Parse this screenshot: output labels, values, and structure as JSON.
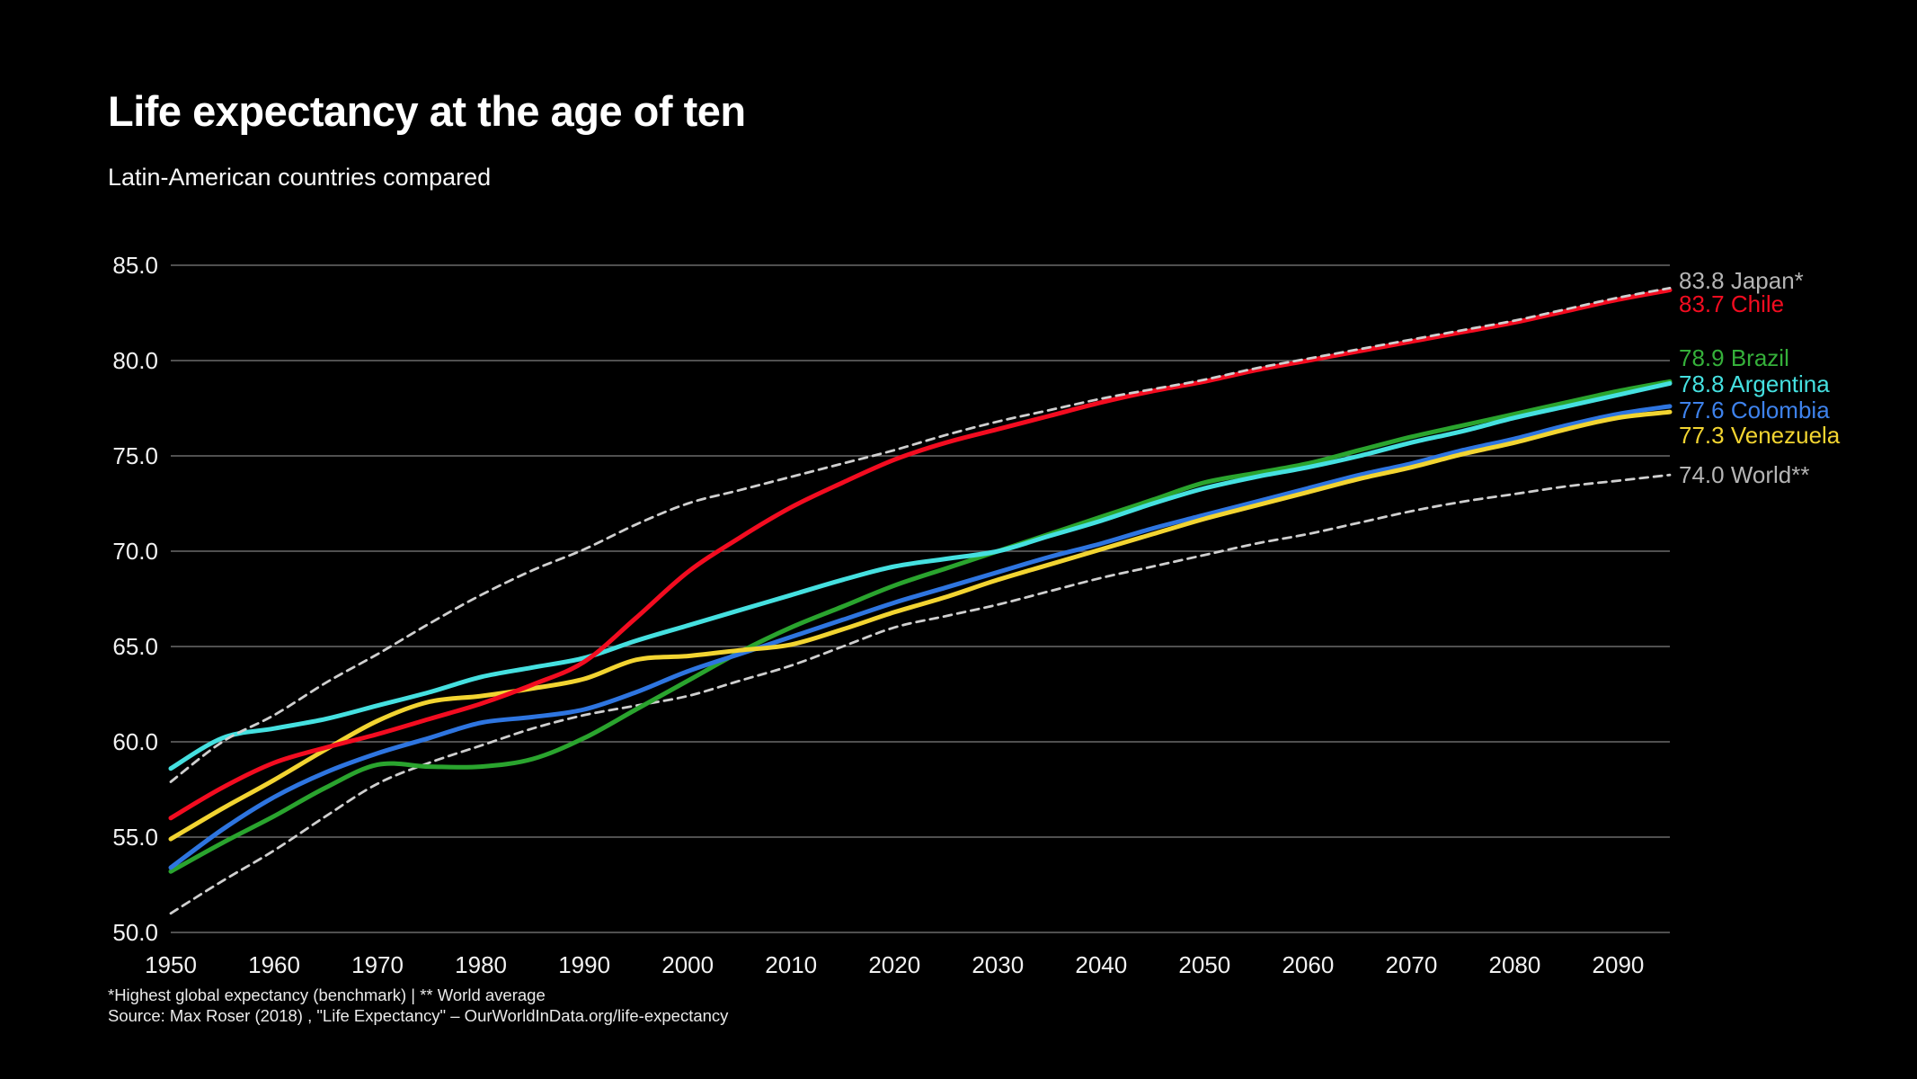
{
  "header": {
    "title": "Life expectancy at the age of ten",
    "subtitle": "Latin-American countries compared"
  },
  "footer": {
    "note": "*Highest global expectancy (benchmark) | ** World average",
    "source": "Source: Max Roser (2018) , \"Life Expectancy\" – OurWorldInData.org/life-expectancy"
  },
  "chart_data": {
    "type": "line",
    "title": "Life expectancy at the age of ten",
    "subtitle": "Latin-American countries compared",
    "xlabel": "",
    "ylabel": "",
    "xlim": [
      1950,
      2095
    ],
    "ylim": [
      50,
      85
    ],
    "grid": "horizontal-only",
    "legend": "right-edge-value-labels",
    "x_ticks": [
      1950,
      1960,
      1970,
      1980,
      1990,
      2000,
      2010,
      2020,
      2030,
      2040,
      2050,
      2060,
      2070,
      2080,
      2090
    ],
    "y_ticks": [
      {
        "value": 50,
        "label": "50.0"
      },
      {
        "value": 55,
        "label": "55.0"
      },
      {
        "value": 60,
        "label": "60.0"
      },
      {
        "value": 65,
        "label": "65.0"
      },
      {
        "value": 70,
        "label": "70.0"
      },
      {
        "value": 75,
        "label": "75.0"
      },
      {
        "value": 80,
        "label": "80.0"
      },
      {
        "value": 85,
        "label": "85.0"
      }
    ],
    "colors": {
      "grid": "#6b6b6b",
      "dashed_line": "#cfcfcf",
      "gray_label": "#b5b5b5",
      "chile": "#f30c20",
      "brazil": "#2aa42e",
      "argentina": "#45e0e0",
      "colombia": "#2e75e0",
      "venezuela": "#f2d431"
    },
    "x": [
      1950,
      1955,
      1960,
      1965,
      1970,
      1975,
      1980,
      1985,
      1990,
      1995,
      2000,
      2005,
      2010,
      2015,
      2020,
      2025,
      2030,
      2035,
      2040,
      2045,
      2050,
      2055,
      2060,
      2065,
      2070,
      2075,
      2080,
      2085,
      2090,
      2095
    ],
    "series": [
      {
        "name": "Japan",
        "end_label": "83.8 Japan*",
        "end_value": 83.8,
        "color": "#cfcfcf",
        "label_color": "#b5b5b5",
        "dashed": true,
        "values": [
          57.9,
          60.0,
          61.4,
          63.1,
          64.6,
          66.2,
          67.7,
          69.0,
          70.1,
          71.4,
          72.5,
          73.2,
          73.9,
          74.6,
          75.3,
          76.1,
          76.8,
          77.4,
          78.0,
          78.5,
          79.0,
          79.6,
          80.1,
          80.6,
          81.1,
          81.6,
          82.1,
          82.7,
          83.3,
          83.8
        ]
      },
      {
        "name": "Chile",
        "end_label": "83.7 Chile",
        "end_value": 83.7,
        "color": "#f30c20",
        "label_color": "#f30c20",
        "dashed": false,
        "values": [
          56.0,
          57.6,
          58.9,
          59.7,
          60.4,
          61.2,
          62.0,
          63.0,
          64.2,
          66.5,
          68.9,
          70.7,
          72.3,
          73.6,
          74.8,
          75.7,
          76.4,
          77.1,
          77.8,
          78.4,
          78.9,
          79.5,
          80.0,
          80.5,
          81.0,
          81.5,
          82.0,
          82.6,
          83.2,
          83.7
        ]
      },
      {
        "name": "Brazil",
        "end_label": "78.9 Brazil",
        "end_value": 78.9,
        "color": "#2aa42e",
        "label_color": "#35b03a",
        "dashed": false,
        "values": [
          53.2,
          54.7,
          56.1,
          57.6,
          58.8,
          58.7,
          58.7,
          59.1,
          60.2,
          61.7,
          63.2,
          64.7,
          66.0,
          67.1,
          68.2,
          69.1,
          70.0,
          70.9,
          71.8,
          72.7,
          73.6,
          74.1,
          74.6,
          75.3,
          76.0,
          76.6,
          77.2,
          77.8,
          78.4,
          78.9
        ]
      },
      {
        "name": "Argentina",
        "end_label": "78.8 Argentina",
        "end_value": 78.8,
        "color": "#45e0e0",
        "label_color": "#45e0e0",
        "dashed": false,
        "values": [
          58.6,
          60.2,
          60.7,
          61.2,
          61.9,
          62.6,
          63.4,
          63.9,
          64.4,
          65.3,
          66.1,
          66.9,
          67.7,
          68.5,
          69.2,
          69.6,
          70.0,
          70.8,
          71.6,
          72.5,
          73.3,
          73.9,
          74.4,
          75.0,
          75.7,
          76.3,
          77.0,
          77.6,
          78.2,
          78.8
        ]
      },
      {
        "name": "Colombia",
        "end_label": "77.6 Colombia",
        "end_value": 77.6,
        "color": "#2e75e0",
        "label_color": "#3e82ec",
        "dashed": false,
        "values": [
          53.4,
          55.4,
          57.1,
          58.4,
          59.4,
          60.2,
          61.0,
          61.3,
          61.7,
          62.6,
          63.7,
          64.6,
          65.5,
          66.4,
          67.3,
          68.1,
          68.9,
          69.7,
          70.4,
          71.2,
          71.9,
          72.6,
          73.3,
          74.0,
          74.6,
          75.3,
          75.9,
          76.6,
          77.2,
          77.6
        ]
      },
      {
        "name": "Venezuela",
        "end_label": "77.3 Venezuela",
        "end_value": 77.3,
        "color": "#f2d431",
        "label_color": "#f2d431",
        "dashed": false,
        "values": [
          54.9,
          56.5,
          58.0,
          59.6,
          61.1,
          62.1,
          62.4,
          62.8,
          63.3,
          64.3,
          64.5,
          64.8,
          65.1,
          65.9,
          66.8,
          67.6,
          68.5,
          69.3,
          70.1,
          70.9,
          71.7,
          72.4,
          73.1,
          73.8,
          74.4,
          75.1,
          75.7,
          76.4,
          77.0,
          77.3
        ]
      },
      {
        "name": "World",
        "end_label": "74.0 World**",
        "end_value": 74.0,
        "color": "#cfcfcf",
        "label_color": "#b5b5b5",
        "dashed": true,
        "values": [
          51.0,
          52.7,
          54.3,
          56.1,
          57.8,
          58.9,
          59.8,
          60.7,
          61.4,
          61.9,
          62.4,
          63.2,
          64.0,
          65.0,
          66.0,
          66.6,
          67.2,
          67.9,
          68.6,
          69.2,
          69.8,
          70.4,
          70.9,
          71.5,
          72.1,
          72.6,
          73.0,
          73.4,
          73.7,
          74.0
        ]
      }
    ]
  }
}
